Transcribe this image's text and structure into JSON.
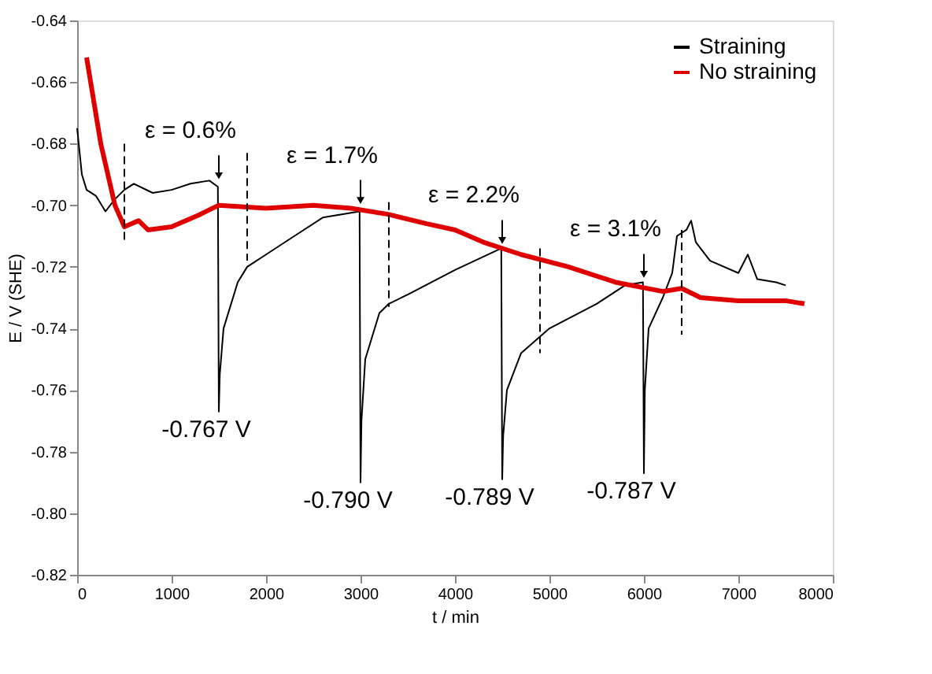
{
  "chart_data": {
    "type": "line",
    "xlabel": "t / min",
    "ylabel": "E / V (SHE)",
    "xlim": [
      0,
      8000
    ],
    "xticks": [
      0,
      1000,
      2000,
      3000,
      4000,
      5000,
      6000,
      7000,
      8000
    ],
    "ylim": [
      -0.82,
      -0.64
    ],
    "yticks": [
      {
        "value": -0.82,
        "label": "-0.82"
      },
      {
        "value": -0.8,
        "label": "-0.80"
      },
      {
        "value": -0.78,
        "label": "-0.78"
      },
      {
        "value": -0.76,
        "label": "-0.76"
      },
      {
        "value": -0.74,
        "label": "-0.74"
      },
      {
        "value": -0.72,
        "label": "-0.72"
      },
      {
        "value": -0.7,
        "label": "-0.70"
      },
      {
        "value": -0.68,
        "label": "-0.68"
      },
      {
        "value": -0.66,
        "label": "-0.66"
      },
      {
        "value": -0.64,
        "label": "-0.64"
      }
    ],
    "grid": false,
    "legend": "top right",
    "series": [
      {
        "name": "Straining",
        "color": "#000000",
        "line_style": "solid",
        "x": [
          0,
          50,
          100,
          200,
          300,
          400,
          500,
          600,
          800,
          1000,
          1200,
          1400,
          1490,
          1500,
          1510,
          1550,
          1700,
          1800,
          2000,
          2300,
          2600,
          2990,
          3000,
          3010,
          3050,
          3200,
          3300,
          3500,
          4000,
          4490,
          4500,
          4510,
          4550,
          4700,
          5000,
          5500,
          5800,
          5990,
          6000,
          6010,
          6050,
          6200,
          6300,
          6350,
          6450,
          6500,
          6550,
          6700,
          7000,
          7100,
          7200,
          7400,
          7500
        ],
        "values": [
          -0.675,
          -0.69,
          -0.695,
          -0.697,
          -0.702,
          -0.698,
          -0.695,
          -0.693,
          -0.696,
          -0.695,
          -0.693,
          -0.692,
          -0.694,
          -0.767,
          -0.755,
          -0.74,
          -0.725,
          -0.72,
          -0.716,
          -0.71,
          -0.704,
          -0.702,
          -0.79,
          -0.77,
          -0.75,
          -0.735,
          -0.732,
          -0.729,
          -0.721,
          -0.714,
          -0.789,
          -0.775,
          -0.76,
          -0.748,
          -0.74,
          -0.732,
          -0.726,
          -0.725,
          -0.787,
          -0.76,
          -0.74,
          -0.73,
          -0.722,
          -0.71,
          -0.708,
          -0.705,
          -0.712,
          -0.718,
          -0.722,
          -0.716,
          -0.724,
          -0.725,
          -0.726
        ]
      },
      {
        "name": "No straining",
        "color": "#e00000",
        "line_style": "solid",
        "x": [
          100,
          250,
          400,
          500,
          650,
          750,
          1000,
          1300,
          1500,
          2000,
          2500,
          2900,
          3300,
          3700,
          4000,
          4300,
          4700,
          5200,
          5700,
          6200,
          6400,
          6600,
          7000,
          7500,
          7700
        ],
        "values": [
          -0.652,
          -0.68,
          -0.7,
          -0.707,
          -0.705,
          -0.708,
          -0.707,
          -0.703,
          -0.7,
          -0.701,
          -0.7,
          -0.701,
          -0.703,
          -0.706,
          -0.708,
          -0.712,
          -0.716,
          -0.72,
          -0.725,
          -0.728,
          -0.727,
          -0.73,
          -0.731,
          -0.731,
          -0.732
        ]
      },
      {
        "color": "#000000",
        "line_style": "dashed",
        "x": [
          500,
          500
        ],
        "values": [
          -0.68,
          -0.712
        ]
      },
      {
        "color": "#000000",
        "line_style": "dashed",
        "x": [
          1800,
          1800
        ],
        "values": [
          -0.683,
          -0.718
        ]
      },
      {
        "color": "#000000",
        "line_style": "dashed",
        "x": [
          3300,
          3300
        ],
        "values": [
          -0.699,
          -0.733
        ]
      },
      {
        "color": "#000000",
        "line_style": "dashed",
        "x": [
          4900,
          4900
        ],
        "values": [
          -0.714,
          -0.748
        ]
      },
      {
        "color": "#000000",
        "line_style": "dashed",
        "x": [
          6400,
          6400
        ],
        "values": [
          -0.708,
          -0.742
        ]
      }
    ],
    "annotations": [
      {
        "text": "ε = 0.6%",
        "x": 1500,
        "y": -0.693
      },
      {
        "text": "-0.767 V",
        "x": 1500,
        "y": -0.767
      },
      {
        "text": "ε = 1.7%",
        "x": 3000,
        "y": -0.701
      },
      {
        "text": "-0.790 V",
        "x": 3000,
        "y": -0.79
      },
      {
        "text": "ε = 2.2%",
        "x": 4500,
        "y": -0.714
      },
      {
        "text": "-0.789 V",
        "x": 4500,
        "y": -0.789
      },
      {
        "text": "ε = 3.1%",
        "x": 6000,
        "y": -0.725
      },
      {
        "text": "-0.787 V",
        "x": 6000,
        "y": -0.787
      }
    ]
  }
}
